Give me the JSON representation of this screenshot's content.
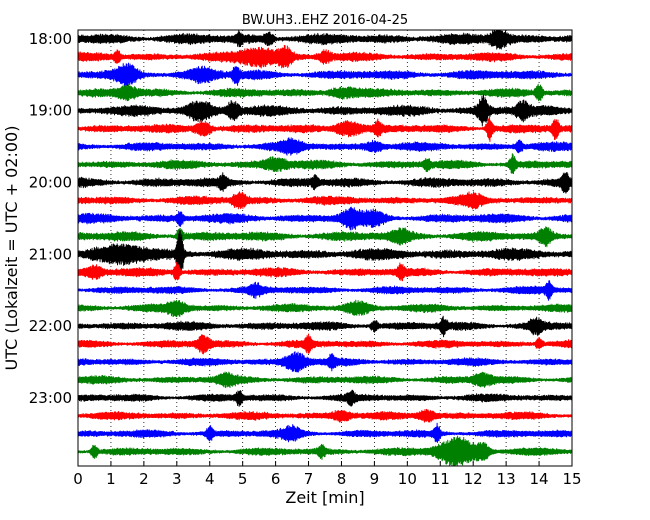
{
  "chart_data": {
    "type": "line",
    "title": "BW.UH3..EHZ 2016-04-25",
    "xlabel": "Zeit  [min]",
    "ylabel": "UTC (Lokalzeit = UTC + 02:00)",
    "xlim": [
      0,
      15
    ],
    "x_ticks": [
      "0",
      "1",
      "2",
      "3",
      "4",
      "5",
      "6",
      "7",
      "8",
      "9",
      "10",
      "11",
      "12",
      "13",
      "14",
      "15"
    ],
    "y_ticks": [
      "18:00",
      "19:00",
      "20:00",
      "21:00",
      "22:00",
      "23:00"
    ],
    "grid": "vertical dotted at each minute",
    "trace_minutes": 15,
    "trace_colors": [
      "#000000",
      "#ff0000",
      "#0000ff",
      "#008000"
    ],
    "rows": [
      {
        "start": "18:00",
        "color": "#000000",
        "base_amp": 0.55,
        "events": [
          {
            "t": 5.8,
            "amp": 0.6,
            "w": 0.15
          },
          {
            "t": 12.8,
            "amp": 0.9,
            "w": 0.3
          },
          {
            "t": 4.9,
            "amp": 0.5,
            "w": 0.1
          }
        ]
      },
      {
        "start": "18:15",
        "color": "#ff0000",
        "base_amp": 0.45,
        "events": [
          {
            "t": 5.5,
            "amp": 1.0,
            "w": 0.6
          },
          {
            "t": 6.3,
            "amp": 0.9,
            "w": 0.2
          },
          {
            "t": 1.2,
            "amp": 0.6,
            "w": 0.1
          },
          {
            "t": 7.5,
            "amp": 0.6,
            "w": 0.2
          }
        ]
      },
      {
        "start": "18:30",
        "color": "#0000ff",
        "base_amp": 0.5,
        "events": [
          {
            "t": 1.5,
            "amp": 0.9,
            "w": 0.3
          },
          {
            "t": 4.8,
            "amp": 0.9,
            "w": 0.1
          },
          {
            "t": 3.8,
            "amp": 0.6,
            "w": 0.4
          }
        ]
      },
      {
        "start": "18:45",
        "color": "#008000",
        "base_amp": 0.45,
        "events": [
          {
            "t": 14.0,
            "amp": 0.9,
            "w": 0.1
          },
          {
            "t": 1.5,
            "amp": 0.6,
            "w": 0.3
          },
          {
            "t": 8.0,
            "amp": 0.5,
            "w": 0.4
          }
        ]
      },
      {
        "start": "19:00",
        "color": "#000000",
        "base_amp": 0.55,
        "events": [
          {
            "t": 3.7,
            "amp": 0.9,
            "w": 0.4
          },
          {
            "t": 4.7,
            "amp": 0.9,
            "w": 0.2
          },
          {
            "t": 12.3,
            "amp": 1.3,
            "w": 0.15
          },
          {
            "t": 13.5,
            "amp": 0.8,
            "w": 0.2
          }
        ]
      },
      {
        "start": "19:15",
        "color": "#ff0000",
        "base_amp": 0.45,
        "events": [
          {
            "t": 3.8,
            "amp": 0.8,
            "w": 0.25
          },
          {
            "t": 8.2,
            "amp": 0.8,
            "w": 0.4
          },
          {
            "t": 9.1,
            "amp": 0.7,
            "w": 0.1
          },
          {
            "t": 12.5,
            "amp": 1.2,
            "w": 0.1
          },
          {
            "t": 14.5,
            "amp": 1.1,
            "w": 0.1
          }
        ]
      },
      {
        "start": "19:30",
        "color": "#0000ff",
        "base_amp": 0.45,
        "events": [
          {
            "t": 6.5,
            "amp": 0.6,
            "w": 0.3
          },
          {
            "t": 9.0,
            "amp": 0.5,
            "w": 0.3
          },
          {
            "t": 13.4,
            "amp": 0.6,
            "w": 0.1
          }
        ]
      },
      {
        "start": "19:45",
        "color": "#008000",
        "base_amp": 0.45,
        "events": [
          {
            "t": 13.2,
            "amp": 1.0,
            "w": 0.1
          },
          {
            "t": 6.0,
            "amp": 0.6,
            "w": 0.4
          },
          {
            "t": 10.6,
            "amp": 0.6,
            "w": 0.1
          }
        ]
      },
      {
        "start": "20:00",
        "color": "#000000",
        "base_amp": 0.5,
        "events": [
          {
            "t": 4.4,
            "amp": 0.7,
            "w": 0.1
          },
          {
            "t": 14.8,
            "amp": 0.9,
            "w": 0.1
          },
          {
            "t": 7.2,
            "amp": 0.5,
            "w": 0.1
          }
        ]
      },
      {
        "start": "20:15",
        "color": "#ff0000",
        "base_amp": 0.45,
        "events": [
          {
            "t": 4.9,
            "amp": 0.8,
            "w": 0.2
          },
          {
            "t": 12.0,
            "amp": 0.5,
            "w": 0.3
          }
        ]
      },
      {
        "start": "20:30",
        "color": "#0000ff",
        "base_amp": 0.5,
        "events": [
          {
            "t": 8.3,
            "amp": 0.9,
            "w": 0.3
          },
          {
            "t": 3.1,
            "amp": 0.7,
            "w": 0.1
          },
          {
            "t": 9.0,
            "amp": 0.6,
            "w": 0.3
          }
        ]
      },
      {
        "start": "20:45",
        "color": "#008000",
        "base_amp": 0.5,
        "events": [
          {
            "t": 14.2,
            "amp": 0.8,
            "w": 0.2
          },
          {
            "t": 9.8,
            "amp": 0.6,
            "w": 0.3
          },
          {
            "t": 3.1,
            "amp": 0.7,
            "w": 0.1
          }
        ]
      },
      {
        "start": "21:00",
        "color": "#000000",
        "base_amp": 0.6,
        "events": [
          {
            "t": 3.1,
            "amp": 2.4,
            "w": 0.1
          },
          {
            "t": 1.5,
            "amp": 0.7,
            "w": 0.8
          }
        ]
      },
      {
        "start": "21:15",
        "color": "#ff0000",
        "base_amp": 0.45,
        "events": [
          {
            "t": 3.0,
            "amp": 0.9,
            "w": 0.1
          },
          {
            "t": 9.8,
            "amp": 0.7,
            "w": 0.1
          },
          {
            "t": 0.5,
            "amp": 0.6,
            "w": 0.3
          }
        ]
      },
      {
        "start": "21:30",
        "color": "#0000ff",
        "base_amp": 0.4,
        "events": [
          {
            "t": 14.3,
            "amp": 0.9,
            "w": 0.1
          },
          {
            "t": 5.4,
            "amp": 0.5,
            "w": 0.2
          }
        ]
      },
      {
        "start": "21:45",
        "color": "#008000",
        "base_amp": 0.4,
        "events": [
          {
            "t": 8.5,
            "amp": 0.6,
            "w": 0.4
          },
          {
            "t": 3.0,
            "amp": 0.7,
            "w": 0.3
          }
        ]
      },
      {
        "start": "22:00",
        "color": "#000000",
        "base_amp": 0.45,
        "events": [
          {
            "t": 11.1,
            "amp": 0.8,
            "w": 0.1
          },
          {
            "t": 13.9,
            "amp": 0.7,
            "w": 0.2
          },
          {
            "t": 9.0,
            "amp": 0.6,
            "w": 0.1
          }
        ]
      },
      {
        "start": "22:15",
        "color": "#ff0000",
        "base_amp": 0.4,
        "events": [
          {
            "t": 3.8,
            "amp": 0.8,
            "w": 0.2
          },
          {
            "t": 7.0,
            "amp": 0.8,
            "w": 0.1
          },
          {
            "t": 14.0,
            "amp": 0.6,
            "w": 0.1
          }
        ]
      },
      {
        "start": "22:30",
        "color": "#0000ff",
        "base_amp": 0.4,
        "events": [
          {
            "t": 6.6,
            "amp": 1.0,
            "w": 0.35
          },
          {
            "t": 7.7,
            "amp": 0.6,
            "w": 0.1
          }
        ]
      },
      {
        "start": "22:45",
        "color": "#008000",
        "base_amp": 0.4,
        "events": [
          {
            "t": 12.3,
            "amp": 0.6,
            "w": 0.3
          },
          {
            "t": 4.5,
            "amp": 0.5,
            "w": 0.3
          }
        ]
      },
      {
        "start": "23:00",
        "color": "#000000",
        "base_amp": 0.4,
        "events": [
          {
            "t": 4.9,
            "amp": 0.7,
            "w": 0.1
          },
          {
            "t": 8.3,
            "amp": 0.6,
            "w": 0.1
          }
        ]
      },
      {
        "start": "23:15",
        "color": "#ff0000",
        "base_amp": 0.4,
        "events": [
          {
            "t": 8.0,
            "amp": 0.5,
            "w": 0.3
          },
          {
            "t": 10.6,
            "amp": 0.6,
            "w": 0.3
          }
        ]
      },
      {
        "start": "23:30",
        "color": "#0000ff",
        "base_amp": 0.4,
        "events": [
          {
            "t": 4.0,
            "amp": 0.8,
            "w": 0.1
          },
          {
            "t": 10.9,
            "amp": 0.9,
            "w": 0.1
          },
          {
            "t": 6.5,
            "amp": 0.6,
            "w": 0.3
          }
        ]
      },
      {
        "start": "23:45",
        "color": "#008000",
        "base_amp": 0.4,
        "events": [
          {
            "t": 11.5,
            "amp": 1.5,
            "w": 0.6
          },
          {
            "t": 12.3,
            "amp": 0.7,
            "w": 0.2
          },
          {
            "t": 0.5,
            "amp": 0.7,
            "w": 0.1
          },
          {
            "t": 7.4,
            "amp": 0.6,
            "w": 0.1
          }
        ]
      }
    ]
  }
}
